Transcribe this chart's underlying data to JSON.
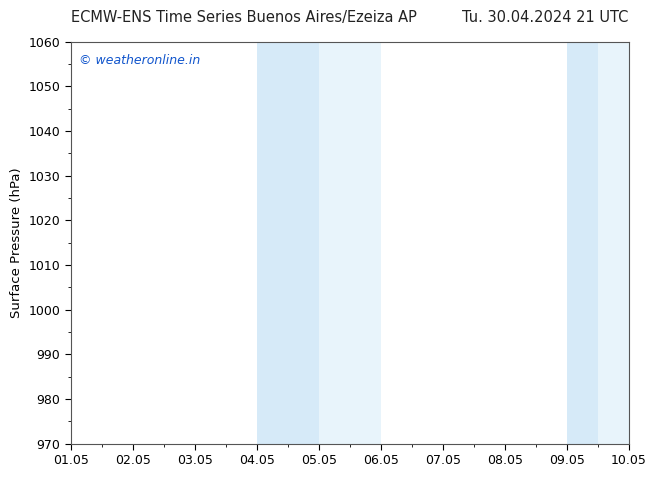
{
  "title_left": "ECMW-ENS Time Series Buenos Aires/Ezeiza AP",
  "title_right": "Tu. 30.04.2024 21 UTC",
  "ylabel": "Surface Pressure (hPa)",
  "watermark": "© weatheronline.in",
  "watermark_color": "#1155cc",
  "xlim": [
    1.05,
    10.05
  ],
  "ylim": [
    970,
    1060
  ],
  "yticks": [
    970,
    980,
    990,
    1000,
    1010,
    1020,
    1030,
    1040,
    1050,
    1060
  ],
  "xtick_labels": [
    "01.05",
    "02.05",
    "03.05",
    "04.05",
    "05.05",
    "06.05",
    "07.05",
    "08.05",
    "09.05",
    "10.05"
  ],
  "xtick_positions": [
    1.05,
    2.05,
    3.05,
    4.05,
    5.05,
    6.05,
    7.05,
    8.05,
    9.05,
    10.05
  ],
  "shaded_regions": [
    {
      "xmin": 4.05,
      "xmax": 5.05,
      "color": "#d6eaf8"
    },
    {
      "xmin": 5.05,
      "xmax": 6.05,
      "color": "#e8f4fb"
    },
    {
      "xmin": 9.05,
      "xmax": 9.55,
      "color": "#d6eaf8"
    },
    {
      "xmin": 9.55,
      "xmax": 10.05,
      "color": "#e8f4fb"
    }
  ],
  "bg_color": "#ffffff",
  "title_fontsize": 10.5,
  "label_fontsize": 9.5,
  "tick_fontsize": 9,
  "watermark_fontsize": 9
}
